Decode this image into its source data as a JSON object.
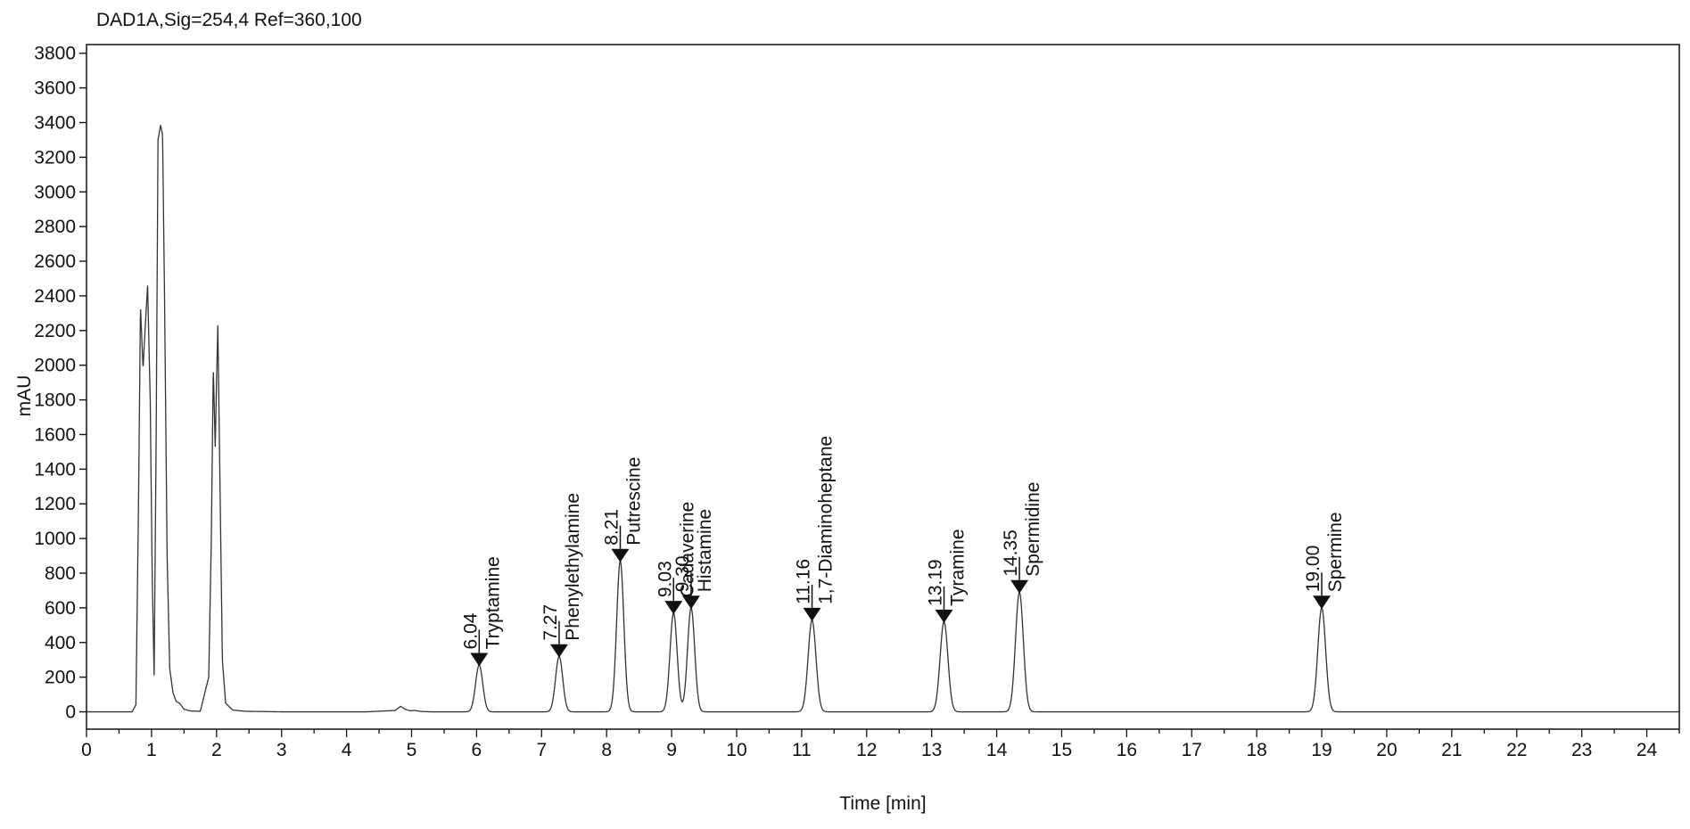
{
  "chart_data": {
    "type": "line",
    "title": "DAD1A,Sig=254,4  Ref=360,100",
    "xlabel": "Time [min]",
    "ylabel": "mAU",
    "xlim": [
      0,
      24.5
    ],
    "ylim": [
      -100,
      3850
    ],
    "x_ticks": [
      0,
      1,
      2,
      3,
      4,
      5,
      6,
      7,
      8,
      9,
      10,
      11,
      12,
      13,
      14,
      15,
      16,
      17,
      18,
      19,
      20,
      21,
      22,
      23,
      24
    ],
    "y_ticks": [
      0,
      200,
      400,
      600,
      800,
      1000,
      1200,
      1400,
      1600,
      1800,
      2000,
      2200,
      2400,
      2600,
      2800,
      3000,
      3200,
      3400,
      3600,
      3800
    ],
    "grid": false,
    "line_color": "#333333",
    "series": [
      {
        "points": [
          [
            0.0,
            0
          ],
          [
            0.7,
            0
          ],
          [
            0.76,
            40
          ],
          [
            0.8,
            1200
          ],
          [
            0.83,
            2340
          ],
          [
            0.87,
            1980
          ],
          [
            0.9,
            2200
          ],
          [
            0.94,
            2460
          ],
          [
            0.98,
            1800
          ],
          [
            1.01,
            800
          ],
          [
            1.04,
            210
          ],
          [
            1.07,
            1500
          ],
          [
            1.1,
            3300
          ],
          [
            1.14,
            3385
          ],
          [
            1.17,
            3330
          ],
          [
            1.2,
            2400
          ],
          [
            1.24,
            900
          ],
          [
            1.28,
            250
          ],
          [
            1.33,
            110
          ],
          [
            1.38,
            60
          ],
          [
            1.43,
            50
          ],
          [
            1.5,
            15
          ],
          [
            1.6,
            5
          ],
          [
            1.75,
            3
          ],
          [
            1.88,
            200
          ],
          [
            1.92,
            1000
          ],
          [
            1.95,
            1990
          ],
          [
            1.98,
            1530
          ],
          [
            2.0,
            1900
          ],
          [
            2.02,
            2230
          ],
          [
            2.05,
            1400
          ],
          [
            2.09,
            300
          ],
          [
            2.14,
            50
          ],
          [
            2.25,
            10
          ],
          [
            2.45,
            3
          ],
          [
            3.0,
            0
          ],
          [
            4.3,
            0
          ],
          [
            4.75,
            8
          ],
          [
            4.83,
            32
          ],
          [
            4.9,
            15
          ],
          [
            4.98,
            6
          ],
          [
            5.05,
            8
          ],
          [
            5.15,
            2
          ],
          [
            5.3,
            0
          ]
        ]
      }
    ],
    "peaks": [
      {
        "rt": 6.04,
        "name": "Tryptamine",
        "height": 270,
        "width": 0.055
      },
      {
        "rt": 7.27,
        "name": "Phenylethylamine",
        "height": 320,
        "width": 0.055
      },
      {
        "rt": 8.21,
        "name": "Putrescine",
        "height": 870,
        "width": 0.055
      },
      {
        "rt": 9.03,
        "name": "Cadaverine",
        "height": 570,
        "width": 0.055
      },
      {
        "rt": 9.3,
        "name": "Histamine",
        "height": 600,
        "width": 0.055
      },
      {
        "rt": 11.16,
        "name": "1,7-Diaminoheptane",
        "height": 530,
        "width": 0.06
      },
      {
        "rt": 13.19,
        "name": "Tyramine",
        "height": 520,
        "width": 0.06
      },
      {
        "rt": 14.35,
        "name": "Spermidine",
        "height": 690,
        "width": 0.06
      },
      {
        "rt": 19.0,
        "name": "Spermine",
        "height": 600,
        "width": 0.06
      }
    ],
    "peak_labels": [
      {
        "rt_text": "6.04",
        "name": "Tryptamine",
        "rt": 6.04,
        "marker_mAU": 340
      },
      {
        "rt_text": "7.27",
        "name": "Phenylethylamine",
        "rt": 7.27,
        "marker_mAU": 390
      },
      {
        "rt_text": "8.21",
        "name": "Putrescine",
        "rt": 8.21,
        "marker_mAU": 940
      },
      {
        "rt_text": "9.03",
        "name": "Cadaverine",
        "rt": 9.03,
        "marker_mAU": 640
      },
      {
        "rt_text": "9.30",
        "name": "Histamine",
        "rt": 9.3,
        "marker_mAU": 670
      },
      {
        "rt_text": "11.16",
        "name": "1,7-Diaminoheptane",
        "rt": 11.16,
        "marker_mAU": 600
      },
      {
        "rt_text": "13.19",
        "name": "Tyramine",
        "rt": 13.19,
        "marker_mAU": 590
      },
      {
        "rt_text": "14.35",
        "name": "Spermidine",
        "rt": 14.35,
        "marker_mAU": 760
      },
      {
        "rt_text": "19.00",
        "name": "Spermine",
        "rt": 19.0,
        "marker_mAU": 670
      }
    ]
  }
}
